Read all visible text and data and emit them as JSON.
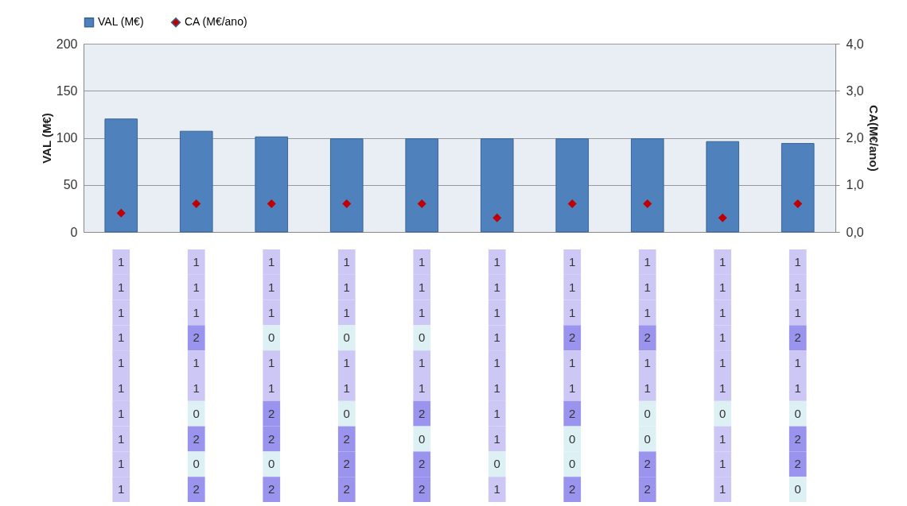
{
  "chart_data": [
    {
      "type": "bar",
      "categories": [
        null,
        null,
        null,
        null,
        null,
        null,
        null,
        null,
        null,
        null
      ],
      "ylabel": "VAL (M€)",
      "y2label": "CA(M€/ano)",
      "ylim": [
        0,
        200
      ],
      "yticks": [
        0,
        50,
        100,
        150,
        200
      ],
      "y2lim": [
        0,
        4
      ],
      "y2ticks": [
        {
          "value": 0,
          "label": "0,0"
        },
        {
          "value": 1,
          "label": "1,0"
        },
        {
          "value": 2,
          "label": "2,0"
        },
        {
          "value": 3,
          "label": "3,0"
        },
        {
          "value": 4,
          "label": "4,0"
        }
      ],
      "grid": "y",
      "legend": "top",
      "marker": "diamond",
      "series": [
        {
          "name": "VAL (M€)",
          "color": "#4f81bd",
          "values": [
            120,
            107,
            101,
            99,
            99,
            99,
            99,
            99,
            96,
            94
          ]
        },
        {
          "name": "CA (M€/ano)",
          "type": "scatter",
          "axis": "y2",
          "color": "#c00000",
          "values": [
            0.4,
            0.6,
            0.6,
            0.6,
            0.6,
            0.3,
            0.6,
            0.6,
            0.3,
            0.6
          ]
        }
      ]
    },
    {
      "type": "heatmap",
      "categories": [
        null,
        null,
        null,
        null,
        null,
        null,
        null,
        null,
        null,
        null
      ],
      "y_categories": [
        null,
        null,
        null,
        null,
        null,
        null,
        null,
        null,
        null,
        null
      ],
      "colors": [
        "#ddf0f4",
        "#cdc7f6",
        "#9b94ee"
      ],
      "data_labels": true,
      "cells": [
        [
          1,
          1,
          1,
          1,
          1,
          1,
          1,
          1,
          1,
          1
        ],
        [
          1,
          1,
          1,
          1,
          1,
          1,
          1,
          1,
          1,
          1
        ],
        [
          1,
          1,
          1,
          1,
          1,
          1,
          1,
          1,
          1,
          1
        ],
        [
          1,
          2,
          0,
          0,
          0,
          1,
          2,
          2,
          1,
          2
        ],
        [
          1,
          1,
          1,
          1,
          1,
          1,
          1,
          1,
          1,
          1
        ],
        [
          1,
          1,
          1,
          1,
          1,
          1,
          1,
          1,
          1,
          1
        ],
        [
          1,
          0,
          2,
          0,
          2,
          1,
          2,
          0,
          0,
          0
        ],
        [
          1,
          2,
          2,
          2,
          0,
          1,
          0,
          0,
          1,
          2
        ],
        [
          1,
          0,
          0,
          2,
          2,
          0,
          0,
          2,
          1,
          2
        ],
        [
          1,
          2,
          2,
          2,
          2,
          1,
          2,
          2,
          1,
          0
        ]
      ]
    }
  ]
}
